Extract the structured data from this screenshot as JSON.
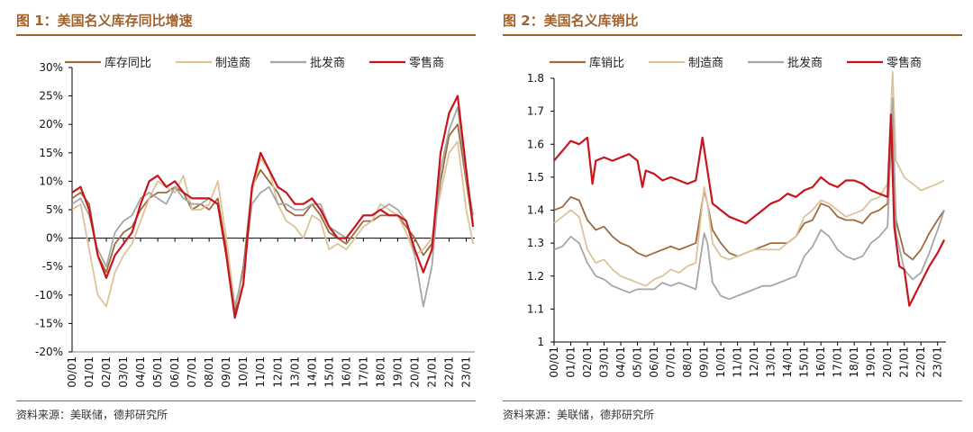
{
  "source": "资料来源：美联储，德邦研究所",
  "colors": {
    "title": "#a0622d",
    "brown": "#9c6b3e",
    "beige": "#dcc39a",
    "gray": "#a6a6a6",
    "red": "#c8151b"
  },
  "chart_data": [
    {
      "title": "图 1：美国名义库存同比增速",
      "type": "line",
      "ylim": [
        -20,
        30
      ],
      "yticks": [
        -20,
        -15,
        -10,
        -5,
        0,
        5,
        10,
        15,
        20,
        25,
        30
      ],
      "ytick_labels": [
        "-20%",
        "-15%",
        "-10%",
        "-5%",
        "0%",
        "5%",
        "10%",
        "15%",
        "20%",
        "25%",
        "30%"
      ],
      "x_range": [
        2000.0,
        2023.5
      ],
      "xtick_labels": [
        "00/01",
        "01/01",
        "02/01",
        "03/01",
        "04/01",
        "05/01",
        "06/01",
        "07/01",
        "08/01",
        "09/01",
        "10/01",
        "11/01",
        "12/01",
        "13/01",
        "14/01",
        "15/01",
        "16/01",
        "17/01",
        "18/01",
        "19/01",
        "20/01",
        "21/01",
        "22/01",
        "23/01"
      ],
      "series": [
        {
          "name": "库存同比",
          "color": "#9c6b3e",
          "x": [
            2000.0,
            2000.5,
            2001.0,
            2001.5,
            2002.0,
            2002.5,
            2003.0,
            2003.5,
            2004.0,
            2004.5,
            2005.0,
            2005.5,
            2006.0,
            2006.5,
            2007.0,
            2007.5,
            2008.0,
            2008.5,
            2009.0,
            2009.5,
            2010.0,
            2010.5,
            2011.0,
            2011.5,
            2012.0,
            2012.5,
            2013.0,
            2013.5,
            2014.0,
            2014.5,
            2015.0,
            2015.5,
            2016.0,
            2016.5,
            2017.0,
            2017.5,
            2018.0,
            2018.5,
            2019.0,
            2019.5,
            2020.0,
            2020.5,
            2021.0,
            2021.5,
            2022.0,
            2022.5,
            2023.0,
            2023.4
          ],
          "y": [
            7,
            8,
            6,
            -3,
            -6,
            -1,
            1,
            2,
            5,
            7,
            8,
            8,
            9,
            8,
            5,
            6,
            5,
            7,
            -2,
            -13,
            -5,
            9,
            12,
            10,
            8,
            5,
            4,
            4,
            6,
            4,
            1,
            0,
            -1,
            1,
            3,
            3,
            4,
            4,
            4,
            2,
            0,
            -3,
            -1,
            10,
            18,
            20,
            10,
            2
          ]
        },
        {
          "name": "制造商",
          "color": "#dcc39a",
          "x": [
            2000.0,
            2000.5,
            2001.0,
            2001.5,
            2002.0,
            2002.5,
            2003.0,
            2003.5,
            2004.0,
            2004.5,
            2005.0,
            2005.5,
            2006.0,
            2006.5,
            2007.0,
            2007.5,
            2008.0,
            2008.5,
            2009.0,
            2009.5,
            2010.0,
            2010.5,
            2011.0,
            2011.5,
            2012.0,
            2012.5,
            2013.0,
            2013.5,
            2014.0,
            2014.5,
            2015.0,
            2015.5,
            2016.0,
            2016.5,
            2017.0,
            2017.5,
            2018.0,
            2018.5,
            2019.0,
            2019.5,
            2020.0,
            2020.5,
            2021.0,
            2021.5,
            2022.0,
            2022.5,
            2023.0,
            2023.4
          ],
          "y": [
            5,
            6,
            -2,
            -10,
            -12,
            -6,
            -3,
            -1,
            3,
            7,
            10,
            9,
            8,
            11,
            5,
            5,
            6,
            10,
            0,
            -12,
            -8,
            8,
            14,
            12,
            6,
            3,
            2,
            0,
            4,
            3,
            -2,
            -1,
            -2,
            0,
            2,
            3,
            6,
            5,
            4,
            1,
            -3,
            -2,
            0,
            8,
            15,
            17,
            5,
            -1
          ]
        },
        {
          "name": "批发商",
          "color": "#a6a6a6",
          "x": [
            2000.0,
            2000.5,
            2001.0,
            2001.5,
            2002.0,
            2002.5,
            2003.0,
            2003.5,
            2004.0,
            2004.5,
            2005.0,
            2005.5,
            2006.0,
            2006.5,
            2007.0,
            2007.5,
            2008.0,
            2008.5,
            2009.0,
            2009.5,
            2010.0,
            2010.5,
            2011.0,
            2011.5,
            2012.0,
            2012.5,
            2013.0,
            2013.5,
            2014.0,
            2014.5,
            2015.0,
            2015.5,
            2016.0,
            2016.5,
            2017.0,
            2017.5,
            2018.0,
            2018.5,
            2019.0,
            2019.5,
            2020.0,
            2020.5,
            2021.0,
            2021.5,
            2022.0,
            2022.5,
            2023.0,
            2023.4
          ],
          "y": [
            6,
            7,
            4,
            -2,
            -5,
            1,
            3,
            4,
            7,
            8,
            7,
            6,
            9,
            7,
            6,
            6,
            7,
            6,
            -3,
            -12,
            -6,
            6,
            8,
            9,
            6,
            6,
            5,
            5,
            6,
            6,
            2,
            1,
            0,
            2,
            4,
            4,
            5,
            6,
            5,
            3,
            -3,
            -12,
            -5,
            12,
            19,
            23,
            11,
            4
          ]
        },
        {
          "name": "零售商",
          "color": "#c8151b",
          "x": [
            2000.0,
            2000.5,
            2001.0,
            2001.5,
            2002.0,
            2002.5,
            2003.0,
            2003.5,
            2004.0,
            2004.5,
            2005.0,
            2005.5,
            2006.0,
            2006.5,
            2007.0,
            2007.5,
            2008.0,
            2008.5,
            2009.0,
            2009.5,
            2010.0,
            2010.5,
            2011.0,
            2011.5,
            2012.0,
            2012.5,
            2013.0,
            2013.5,
            2014.0,
            2014.5,
            2015.0,
            2015.5,
            2016.0,
            2016.5,
            2017.0,
            2017.5,
            2018.0,
            2018.5,
            2019.0,
            2019.5,
            2020.0,
            2020.5,
            2021.0,
            2021.5,
            2022.0,
            2022.5,
            2023.0,
            2023.4
          ],
          "y": [
            8,
            9,
            5,
            -3,
            -7,
            -3,
            -1,
            1,
            6,
            10,
            11,
            9,
            10,
            8,
            7,
            7,
            7,
            6,
            -3,
            -14,
            -8,
            9,
            15,
            12,
            9,
            8,
            6,
            6,
            7,
            5,
            2,
            0,
            0,
            2,
            4,
            4,
            5,
            4,
            4,
            3,
            -2,
            -6,
            -2,
            15,
            22,
            25,
            12,
            2
          ]
        }
      ]
    },
    {
      "title": "图 2：美国名义库销比",
      "type": "line",
      "ylim": [
        1.0,
        1.8
      ],
      "yticks": [
        1.0,
        1.1,
        1.2,
        1.3,
        1.4,
        1.5,
        1.6,
        1.7,
        1.8
      ],
      "ytick_labels": [
        "1",
        "1.1",
        "1.2",
        "1.3",
        "1.4",
        "1.5",
        "1.6",
        "1.7",
        "1.8"
      ],
      "x_range": [
        2000.0,
        2023.5
      ],
      "xtick_labels": [
        "00/01",
        "01/01",
        "02/01",
        "03/01",
        "04/01",
        "05/01",
        "06/01",
        "07/01",
        "08/01",
        "09/01",
        "10/01",
        "11/01",
        "12/01",
        "13/01",
        "14/01",
        "15/01",
        "16/01",
        "17/01",
        "18/01",
        "19/01",
        "20/01",
        "21/01",
        "22/01",
        "23/01"
      ],
      "series": [
        {
          "name": "库销比",
          "color": "#9c6b3e",
          "x": [
            2000.0,
            2000.5,
            2001.0,
            2001.5,
            2002.0,
            2002.5,
            2003.0,
            2003.5,
            2004.0,
            2004.5,
            2005.0,
            2005.5,
            2006.0,
            2006.5,
            2007.0,
            2007.5,
            2008.0,
            2008.5,
            2009.0,
            2009.2,
            2009.5,
            2010.0,
            2010.5,
            2011.0,
            2011.5,
            2012.0,
            2012.5,
            2013.0,
            2013.5,
            2014.0,
            2014.5,
            2015.0,
            2015.5,
            2016.0,
            2016.5,
            2017.0,
            2017.5,
            2018.0,
            2018.5,
            2019.0,
            2019.5,
            2020.0,
            2020.3,
            2020.5,
            2021.0,
            2021.5,
            2022.0,
            2022.5,
            2023.0,
            2023.4
          ],
          "y": [
            1.4,
            1.41,
            1.44,
            1.43,
            1.37,
            1.34,
            1.35,
            1.32,
            1.3,
            1.29,
            1.27,
            1.26,
            1.27,
            1.28,
            1.29,
            1.28,
            1.29,
            1.3,
            1.46,
            1.42,
            1.34,
            1.3,
            1.27,
            1.26,
            1.27,
            1.28,
            1.29,
            1.3,
            1.3,
            1.3,
            1.32,
            1.36,
            1.37,
            1.42,
            1.41,
            1.38,
            1.37,
            1.37,
            1.36,
            1.39,
            1.4,
            1.42,
            1.66,
            1.37,
            1.27,
            1.25,
            1.28,
            1.33,
            1.37,
            1.4
          ]
        },
        {
          "name": "制造商",
          "color": "#dcc39a",
          "x": [
            2000.0,
            2000.5,
            2001.0,
            2001.5,
            2002.0,
            2002.5,
            2003.0,
            2003.5,
            2004.0,
            2004.5,
            2005.0,
            2005.5,
            2006.0,
            2006.5,
            2007.0,
            2007.5,
            2008.0,
            2008.5,
            2009.0,
            2009.2,
            2009.5,
            2010.0,
            2010.5,
            2011.0,
            2011.5,
            2012.0,
            2012.5,
            2013.0,
            2013.5,
            2014.0,
            2014.5,
            2015.0,
            2015.5,
            2016.0,
            2016.5,
            2017.0,
            2017.5,
            2018.0,
            2018.5,
            2019.0,
            2019.5,
            2020.0,
            2020.3,
            2020.5,
            2021.0,
            2021.5,
            2022.0,
            2022.5,
            2023.0,
            2023.4
          ],
          "y": [
            1.36,
            1.38,
            1.4,
            1.38,
            1.28,
            1.24,
            1.25,
            1.22,
            1.2,
            1.19,
            1.18,
            1.17,
            1.19,
            1.2,
            1.22,
            1.21,
            1.23,
            1.24,
            1.47,
            1.42,
            1.3,
            1.26,
            1.25,
            1.26,
            1.27,
            1.28,
            1.28,
            1.28,
            1.28,
            1.3,
            1.32,
            1.38,
            1.4,
            1.43,
            1.42,
            1.4,
            1.38,
            1.39,
            1.4,
            1.43,
            1.44,
            1.48,
            1.82,
            1.55,
            1.5,
            1.48,
            1.46,
            1.47,
            1.48,
            1.49
          ]
        },
        {
          "name": "批发商",
          "color": "#a6a6a6",
          "x": [
            2000.0,
            2000.5,
            2001.0,
            2001.5,
            2002.0,
            2002.5,
            2003.0,
            2003.5,
            2004.0,
            2004.5,
            2005.0,
            2005.5,
            2006.0,
            2006.5,
            2007.0,
            2007.5,
            2008.0,
            2008.5,
            2009.0,
            2009.2,
            2009.5,
            2010.0,
            2010.5,
            2011.0,
            2011.5,
            2012.0,
            2012.5,
            2013.0,
            2013.5,
            2014.0,
            2014.5,
            2015.0,
            2015.5,
            2016.0,
            2016.5,
            2017.0,
            2017.5,
            2018.0,
            2018.5,
            2019.0,
            2019.5,
            2020.0,
            2020.3,
            2020.5,
            2021.0,
            2021.5,
            2022.0,
            2022.5,
            2023.0,
            2023.4
          ],
          "y": [
            1.28,
            1.29,
            1.32,
            1.3,
            1.24,
            1.2,
            1.19,
            1.17,
            1.16,
            1.15,
            1.16,
            1.16,
            1.16,
            1.18,
            1.17,
            1.18,
            1.17,
            1.16,
            1.33,
            1.3,
            1.18,
            1.14,
            1.13,
            1.14,
            1.15,
            1.16,
            1.17,
            1.17,
            1.18,
            1.19,
            1.2,
            1.26,
            1.29,
            1.34,
            1.32,
            1.28,
            1.26,
            1.25,
            1.26,
            1.3,
            1.32,
            1.35,
            1.74,
            1.33,
            1.22,
            1.19,
            1.21,
            1.27,
            1.34,
            1.4
          ]
        },
        {
          "name": "零售商",
          "color": "#c8151b",
          "x": [
            2000.0,
            2000.5,
            2001.0,
            2001.5,
            2002.0,
            2002.3,
            2002.5,
            2003.0,
            2003.5,
            2004.0,
            2004.5,
            2005.0,
            2005.3,
            2005.5,
            2006.0,
            2006.5,
            2007.0,
            2007.5,
            2008.0,
            2008.5,
            2008.9,
            2009.2,
            2009.5,
            2010.0,
            2010.5,
            2011.0,
            2011.5,
            2012.0,
            2012.5,
            2013.0,
            2013.5,
            2014.0,
            2014.5,
            2015.0,
            2015.5,
            2016.0,
            2016.5,
            2017.0,
            2017.5,
            2018.0,
            2018.5,
            2019.0,
            2019.5,
            2020.0,
            2020.2,
            2020.4,
            2020.7,
            2021.0,
            2021.3,
            2021.6,
            2022.0,
            2022.5,
            2023.0,
            2023.4
          ],
          "y": [
            1.55,
            1.58,
            1.61,
            1.6,
            1.62,
            1.48,
            1.55,
            1.56,
            1.55,
            1.56,
            1.57,
            1.55,
            1.47,
            1.52,
            1.51,
            1.49,
            1.5,
            1.49,
            1.48,
            1.49,
            1.62,
            1.52,
            1.42,
            1.4,
            1.38,
            1.37,
            1.36,
            1.38,
            1.4,
            1.42,
            1.43,
            1.45,
            1.44,
            1.46,
            1.47,
            1.5,
            1.48,
            1.47,
            1.49,
            1.49,
            1.48,
            1.46,
            1.45,
            1.44,
            1.69,
            1.35,
            1.23,
            1.22,
            1.11,
            1.14,
            1.18,
            1.23,
            1.27,
            1.31
          ]
        }
      ]
    }
  ]
}
